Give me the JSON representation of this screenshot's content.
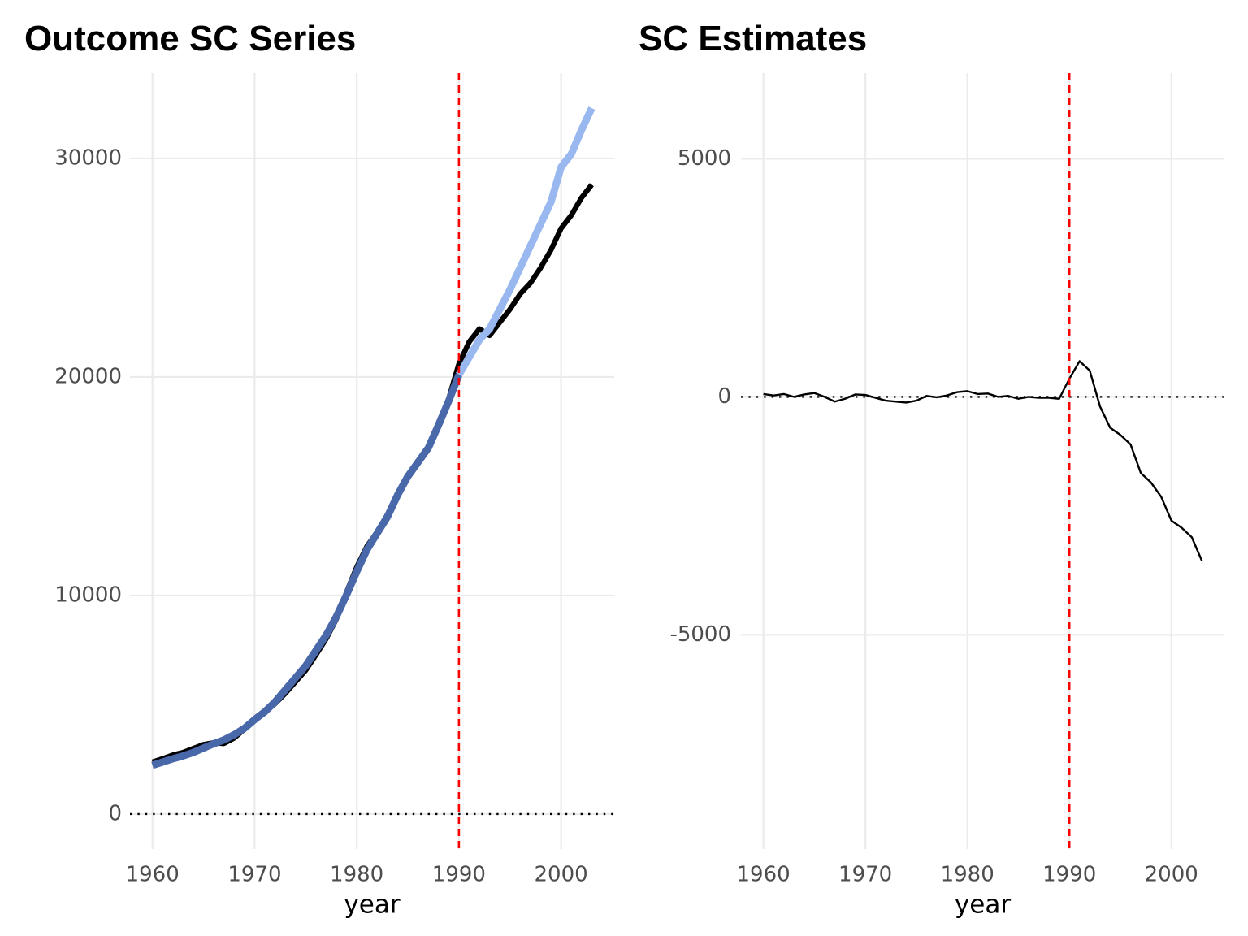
{
  "chart_data": [
    {
      "type": "line",
      "title": "Outcome SC Series",
      "xlabel": "year",
      "ylabel": "",
      "xlim": [
        1957.8,
        2005.2
      ],
      "ylim": [
        -1600,
        33900
      ],
      "xticks": [
        1960,
        1970,
        1980,
        1990,
        2000
      ],
      "yticks": [
        0,
        10000,
        20000,
        30000
      ],
      "grid": true,
      "legend": "none",
      "reference_lines": [
        {
          "axis": "x",
          "value": 1990,
          "style": "dashed",
          "color": "#ff0000"
        },
        {
          "axis": "y",
          "value": 0,
          "style": "dotted",
          "color": "#000000"
        }
      ],
      "series": [
        {
          "color": "#000000",
          "x": [
            1960,
            1961,
            1962,
            1963,
            1964,
            1965,
            1966,
            1967,
            1968,
            1969,
            1970,
            1971,
            1972,
            1973,
            1974,
            1975,
            1976,
            1977,
            1978,
            1979,
            1980,
            1981,
            1982,
            1983,
            1984,
            1985,
            1986,
            1987,
            1988,
            1989,
            1990,
            1991,
            1992,
            1993,
            1994,
            1995,
            1996,
            1997,
            1998,
            1999,
            2000,
            2001,
            2002,
            2003
          ],
          "y": [
            2380,
            2530,
            2700,
            2820,
            3000,
            3180,
            3260,
            3230,
            3480,
            3880,
            4320,
            4680,
            5050,
            5520,
            6050,
            6580,
            7280,
            8020,
            8920,
            10150,
            11300,
            12250,
            12900,
            13700,
            14600,
            15400,
            16050,
            16780,
            17800,
            19000,
            20600,
            21600,
            22200,
            21900,
            22500,
            23100,
            23800,
            24300,
            25000,
            25800,
            26800,
            27400,
            28200,
            28800
          ]
        },
        {
          "color": "#4868aa",
          "x": [
            1960,
            1961,
            1962,
            1963,
            1964,
            1965,
            1966,
            1967,
            1968,
            1969,
            1970,
            1971,
            1972,
            1973,
            1974,
            1975,
            1976,
            1977,
            1978,
            1979,
            1980,
            1981,
            1982,
            1983,
            1984,
            1985,
            1986,
            1987,
            1988,
            1989,
            1990
          ],
          "y": [
            2230,
            2380,
            2530,
            2660,
            2820,
            3020,
            3220,
            3390,
            3630,
            3920,
            4320,
            4680,
            5130,
            5680,
            6230,
            6780,
            7480,
            8180,
            9030,
            10030,
            11100,
            12100,
            12850,
            13600,
            14600,
            15450,
            16100,
            16750,
            17800,
            18900,
            20100
          ]
        },
        {
          "color": "#99b8f0",
          "x": [
            1990,
            1991,
            1992,
            1993,
            1994,
            1995,
            1996,
            1997,
            1998,
            1999,
            2000,
            2001,
            2002,
            2003
          ],
          "y": [
            20100,
            20900,
            21700,
            22200,
            23100,
            24000,
            25000,
            26000,
            27000,
            28000,
            29600,
            30200,
            31300,
            32300
          ]
        }
      ]
    },
    {
      "type": "line",
      "title": "SC Estimates",
      "xlabel": "year",
      "ylabel": "",
      "xlim": [
        1957.8,
        2005.2
      ],
      "ylim": [
        -9500,
        6800
      ],
      "xticks": [
        1960,
        1970,
        1980,
        1990,
        2000
      ],
      "yticks": [
        -5000,
        0,
        5000
      ],
      "grid": true,
      "legend": "none",
      "reference_lines": [
        {
          "axis": "x",
          "value": 1990,
          "style": "dashed",
          "color": "#ff0000"
        },
        {
          "axis": "y",
          "value": 0,
          "style": "dotted",
          "color": "#000000"
        }
      ],
      "series": [
        {
          "color": "#000000",
          "x": [
            1960,
            1961,
            1962,
            1963,
            1964,
            1965,
            1966,
            1967,
            1968,
            1969,
            1970,
            1971,
            1972,
            1973,
            1974,
            1975,
            1976,
            1977,
            1978,
            1979,
            1980,
            1981,
            1982,
            1983,
            1984,
            1985,
            1986,
            1987,
            1988,
            1989,
            1990,
            1991,
            1992,
            1993,
            1994,
            1995,
            1996,
            1997,
            1998,
            1999,
            2000,
            2001,
            2002,
            2003
          ],
          "y": [
            60,
            30,
            60,
            0,
            50,
            80,
            0,
            -100,
            -40,
            50,
            40,
            -20,
            -80,
            -100,
            -120,
            -80,
            20,
            -10,
            30,
            100,
            120,
            60,
            70,
            0,
            20,
            -40,
            0,
            -20,
            -20,
            -40,
            380,
            750,
            550,
            -200,
            -650,
            -800,
            -1000,
            -1600,
            -1800,
            -2100,
            -2600,
            -2750,
            -2950,
            -3450
          ]
        }
      ]
    }
  ]
}
